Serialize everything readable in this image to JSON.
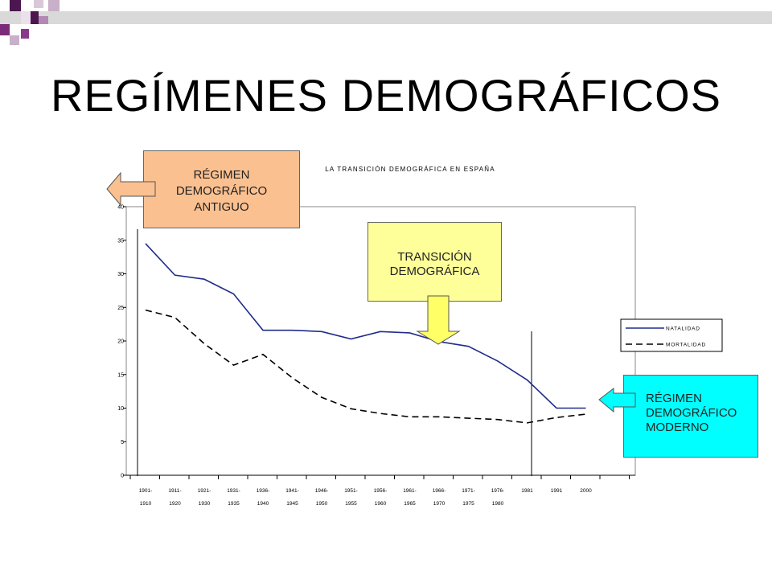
{
  "slide": {
    "title": "REGÍMENES DEMOGRÁFICOS"
  },
  "callouts": {
    "antiguo": [
      "RÉGIMEN",
      "DEMOGRÁFICO",
      "ANTIGUO"
    ],
    "transicion": [
      "TRANSICIÓN",
      "DEMOGRÁFICA"
    ],
    "moderno": [
      "RÉGIMEN",
      "DEMOGRÁFICO",
      "MODERNO"
    ]
  },
  "colors": {
    "antiguo_box": "#fac090",
    "transicion_box": "#ffff99",
    "moderno_box": "#00ffff",
    "natalidad_line": "#1f2d8a",
    "mortalidad_line": "#000000"
  },
  "chart_data": {
    "type": "line",
    "title": "LA TRANSICIÓN DEMOGRÁFICA EN ESPAÑA",
    "xlabel": "",
    "ylabel": "",
    "ylim": [
      0,
      40
    ],
    "yticks": [
      0,
      5,
      10,
      15,
      20,
      25,
      30,
      35,
      40
    ],
    "categories": [
      [
        "1901-",
        "1910"
      ],
      [
        "1911-",
        "1920"
      ],
      [
        "1921-",
        "1930"
      ],
      [
        "1931-",
        "1935"
      ],
      [
        "1936-",
        "1940"
      ],
      [
        "1941-",
        "1945"
      ],
      [
        "1946-",
        "1950"
      ],
      [
        "1951-",
        "1955"
      ],
      [
        "1956-",
        "1960"
      ],
      [
        "1961-",
        "1965"
      ],
      [
        "1966-",
        "1970"
      ],
      [
        "1971-",
        "1975"
      ],
      [
        "1976-",
        "1980"
      ],
      [
        "1981",
        ""
      ],
      [
        "1991",
        ""
      ],
      [
        "2000",
        ""
      ]
    ],
    "series": [
      {
        "name": "NATALIDAD",
        "style": "solid",
        "values": [
          34.5,
          29.8,
          29.2,
          27.0,
          21.6,
          21.6,
          21.4,
          20.3,
          21.4,
          21.2,
          19.9,
          19.2,
          17.0,
          14.2,
          10.0,
          10.0
        ]
      },
      {
        "name": "MORTALIDAD",
        "style": "dashed",
        "values": [
          24.6,
          23.5,
          19.6,
          16.4,
          18.0,
          14.5,
          11.6,
          9.9,
          9.2,
          8.7,
          8.7,
          8.5,
          8.3,
          7.8,
          8.6,
          9.1
        ]
      }
    ],
    "legend": "right",
    "grid": false
  }
}
